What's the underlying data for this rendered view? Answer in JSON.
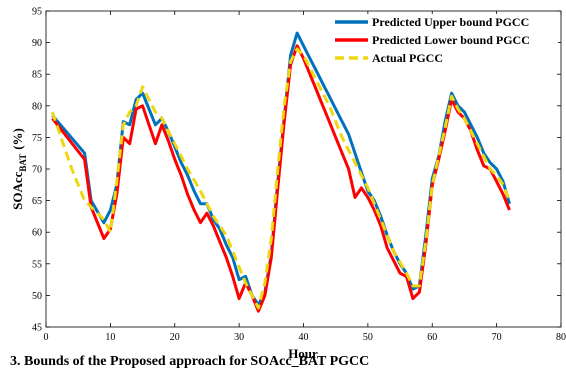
{
  "chart_data": {
    "type": "line",
    "xlabel": "Hour",
    "ylabel_main": "SOAcc",
    "ylabel_sub": "BAT",
    "ylabel_unit": "(%)",
    "xlim": [
      0,
      80
    ],
    "ylim": [
      45,
      95
    ],
    "xticks": [
      0,
      10,
      20,
      30,
      40,
      50,
      60,
      70,
      80
    ],
    "yticks": [
      45,
      50,
      55,
      60,
      65,
      70,
      75,
      80,
      85,
      90,
      95
    ],
    "grid": false,
    "legend_position": "top-right",
    "series": [
      {
        "name": "Predicted Upper bound PGCC",
        "color": "#0072BD",
        "style": "solid",
        "x": [
          1,
          6,
          7,
          9,
          10,
          11,
          12,
          13,
          14,
          15,
          16,
          17,
          18,
          19,
          20,
          21,
          22,
          23,
          24,
          25,
          26,
          27,
          28,
          29,
          30,
          31,
          32,
          33,
          34,
          35,
          36,
          37,
          38,
          39,
          40,
          41,
          42,
          43,
          44,
          45,
          46,
          47,
          48,
          49,
          50,
          51,
          52,
          53,
          54,
          55,
          56,
          57,
          58,
          59,
          60,
          61,
          62,
          63,
          64,
          65,
          66,
          67,
          68,
          69,
          70,
          71,
          72
        ],
        "values": [
          78.5,
          72.5,
          65,
          61.5,
          63.5,
          67.5,
          77.5,
          77,
          81,
          82,
          79.5,
          77,
          78,
          76,
          73.5,
          71,
          69,
          66.5,
          64.5,
          64.5,
          62,
          60.5,
          58,
          56,
          52.5,
          53,
          50,
          48.5,
          50.5,
          56.5,
          68,
          78,
          88,
          91.5,
          89.5,
          87.5,
          85.5,
          83.5,
          81.5,
          79.5,
          77.5,
          75.5,
          72.5,
          69.5,
          66.5,
          65,
          62.5,
          59.5,
          57,
          55,
          53.5,
          51,
          51.5,
          59.5,
          68.5,
          72,
          77.5,
          82,
          80,
          79,
          77,
          75,
          72.5,
          71,
          70,
          68,
          64.5
        ]
      },
      {
        "name": "Predicted Lower bound PGCC",
        "color": "#FF0000",
        "style": "solid",
        "x": [
          1,
          6,
          7,
          9,
          10,
          11,
          12,
          13,
          14,
          15,
          16,
          17,
          18,
          19,
          20,
          21,
          22,
          23,
          24,
          25,
          26,
          27,
          28,
          29,
          30,
          31,
          32,
          33,
          34,
          35,
          36,
          37,
          38,
          39,
          40,
          41,
          42,
          43,
          44,
          45,
          46,
          47,
          48,
          49,
          50,
          51,
          52,
          53,
          54,
          55,
          56,
          57,
          58,
          59,
          60,
          61,
          62,
          63,
          64,
          65,
          66,
          67,
          68,
          69,
          70,
          71,
          72
        ],
        "values": [
          78,
          71.5,
          64,
          59,
          60.5,
          66,
          75,
          74,
          79.5,
          80,
          77,
          74,
          77,
          74.5,
          71.5,
          69,
          66,
          63.5,
          61.5,
          63,
          61,
          58.5,
          56,
          53,
          49.5,
          52,
          50,
          47.5,
          50,
          56,
          67,
          77.5,
          86.5,
          89.5,
          87.5,
          85,
          82.5,
          80,
          77.5,
          75,
          72.5,
          70,
          65.5,
          67,
          65.5,
          63.5,
          61,
          57.5,
          55.5,
          53.5,
          53,
          49.5,
          50.5,
          58,
          67.5,
          71.5,
          76,
          81,
          79,
          78,
          76,
          73,
          70.5,
          70,
          68,
          66,
          63.5
        ]
      },
      {
        "name": "Actual PGCC",
        "color": "#EDD712",
        "style": "dashed",
        "x": [
          1,
          4,
          6,
          7,
          9,
          10,
          11,
          12,
          13,
          14,
          15,
          16,
          17,
          18,
          19,
          20,
          22,
          24,
          26,
          28,
          30,
          31,
          32,
          33,
          34,
          35,
          36,
          37,
          38,
          39,
          40,
          42,
          44,
          46,
          48,
          50,
          52,
          54,
          56,
          57,
          58,
          59,
          60,
          61,
          62,
          63,
          64,
          65,
          66,
          67,
          68,
          69,
          70,
          71,
          72
        ],
        "values": [
          79,
          70,
          65,
          64,
          62,
          60,
          68,
          77,
          79,
          80,
          83,
          81,
          79,
          78,
          76,
          74,
          70,
          66.5,
          62.5,
          59.5,
          54.5,
          52,
          50,
          48,
          52,
          59,
          70,
          80,
          87,
          89,
          88,
          84,
          80,
          75,
          71,
          67,
          62,
          57,
          53.5,
          51.5,
          51.5,
          58.5,
          67.5,
          72,
          76.5,
          81.5,
          79.5,
          78,
          76,
          74,
          72,
          70,
          69,
          67.5,
          65
        ]
      }
    ]
  },
  "caption": "3. Bounds of the Proposed approach for SOAcc_BAT PGCC"
}
